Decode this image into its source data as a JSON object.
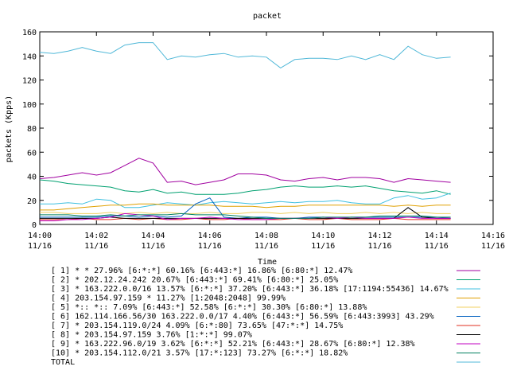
{
  "chart_data": {
    "type": "line",
    "title": "packet",
    "xlabel": "Time",
    "ylabel": "packets (Kpps)",
    "ylim": [
      0,
      160
    ],
    "xlim": [
      0,
      16
    ],
    "y_ticks": [
      "0",
      "20",
      "40",
      "60",
      "80",
      "100",
      "120",
      "140",
      "160"
    ],
    "x_ticks": [
      {
        "time": "14:00",
        "date": "11/16"
      },
      {
        "time": "14:02",
        "date": "11/16"
      },
      {
        "time": "14:04",
        "date": "11/16"
      },
      {
        "time": "14:06",
        "date": "11/16"
      },
      {
        "time": "14:08",
        "date": "11/16"
      },
      {
        "time": "14:10",
        "date": "11/16"
      },
      {
        "time": "14:12",
        "date": "11/16"
      },
      {
        "time": "14:14",
        "date": "11/16"
      },
      {
        "time": "14:16",
        "date": "11/16"
      }
    ],
    "x": [
      0,
      0.5,
      1,
      1.5,
      2,
      2.5,
      3,
      3.5,
      4,
      4.5,
      5,
      5.5,
      6,
      6.5,
      7,
      7.5,
      8,
      8.5,
      9,
      9.5,
      10,
      10.5,
      11,
      11.5,
      12,
      12.5,
      13,
      13.5,
      14,
      14.5
    ],
    "series": [
      {
        "name": "[ 1] * * 27.96%  [6:*:*] 60.16% [6:443:*] 16.86% [6:80:*] 12.47%",
        "color": "#a000a0",
        "values": [
          38,
          39,
          41,
          43,
          41,
          43,
          49,
          55,
          51,
          35,
          36,
          33,
          35,
          37,
          42,
          42,
          41,
          37,
          36,
          38,
          39,
          37,
          39,
          39,
          38,
          35,
          38,
          37,
          36,
          35
        ]
      },
      {
        "name": "[ 2] * 202.12.24.242 20.67%  [6:443:*] 69.41% [6:80:*] 25.05%",
        "color": "#00a070",
        "values": [
          37,
          36,
          34,
          33,
          32,
          31,
          28,
          27,
          29,
          26,
          27,
          25,
          25,
          25,
          26,
          28,
          29,
          31,
          32,
          31,
          31,
          32,
          31,
          32,
          30,
          28,
          27,
          26,
          28,
          25
        ]
      },
      {
        "name": "[ 3] * 163.222.0.0/16 13.57%  [6:*:*] 37.20% [6:443:*] 36.18% [17:1194:55436] 14.67%",
        "color": "#40c0e0",
        "values": [
          17,
          17,
          18,
          17,
          21,
          20,
          14,
          14,
          16,
          18,
          17,
          16,
          18,
          19,
          18,
          17,
          18,
          19,
          18,
          19,
          19,
          20,
          18,
          17,
          17,
          22,
          24,
          21,
          22,
          26
        ]
      },
      {
        "name": "[ 4] 203.154.97.159 * 11.27%  [1:2048:2048] 99.99%",
        "color": "#e0a000",
        "values": [
          12,
          12,
          13,
          14,
          15,
          16,
          16,
          17,
          17,
          16,
          16,
          16,
          16,
          15,
          15,
          15,
          14,
          15,
          15,
          16,
          16,
          16,
          16,
          16,
          16,
          15,
          16,
          15,
          16,
          16
        ]
      },
      {
        "name": "[ 5] *:: *:: 7.09%  [6:443:*] 52.58% [6:*:*] 30.30% [6:80:*] 13.88%",
        "color": "#f0d060",
        "values": [
          10,
          10,
          9,
          9,
          9,
          10,
          9,
          10,
          9,
          10,
          9,
          9,
          10,
          9,
          9,
          10,
          10,
          9,
          10,
          9,
          10,
          9,
          9,
          10,
          9,
          10,
          9,
          10,
          9,
          9
        ]
      },
      {
        "name": "[ 6] 162.114.166.56/30 163.222.0.0/17 4.40%  [6:443:*] 56.59% [6:443:3993] 43.29%",
        "color": "#0060c0",
        "values": [
          6,
          6,
          6,
          6,
          6,
          7,
          7,
          6,
          7,
          6,
          7,
          17,
          22,
          6,
          5,
          6,
          6,
          5,
          5,
          6,
          6,
          5,
          6,
          6,
          6,
          6,
          6,
          6,
          6,
          5
        ]
      },
      {
        "name": "[ 7] * 203.154.119.0/24 4.09%  [6:*:80] 73.65% [47:*:*] 14.75%",
        "color": "#e03020",
        "values": [
          4,
          4,
          4,
          5,
          4,
          4,
          5,
          4,
          5,
          4,
          4,
          5,
          4,
          4,
          5,
          4,
          4,
          4,
          5,
          4,
          4,
          5,
          4,
          4,
          4,
          5,
          4,
          4,
          4,
          4
        ]
      },
      {
        "name": "[ 8] * 203.154.97.159 3.76%  [1:*:*] 99.07%",
        "color": "#000000",
        "values": [
          5,
          5,
          5,
          5,
          5,
          6,
          5,
          5,
          5,
          5,
          5,
          5,
          5,
          5,
          5,
          5,
          5,
          5,
          5,
          5,
          5,
          5,
          5,
          5,
          5,
          5,
          14,
          6,
          5,
          5
        ]
      },
      {
        "name": "[ 9] * 163.222.96.0/19 3.62%  [6:*:*] 52.21% [6:443:*] 28.67% [6:80:*] 12.38%",
        "color": "#c000c0",
        "values": [
          3,
          3,
          4,
          4,
          5,
          6,
          9,
          8,
          7,
          4,
          5,
          5,
          6,
          5,
          4,
          4,
          4,
          5,
          5,
          5,
          6,
          5,
          6,
          5,
          5,
          5,
          6,
          5,
          5,
          5
        ]
      },
      {
        "name": "[10] * 203.154.112.0/21 3.57%  [17:*:123] 73.27% [6:*:*] 18.82%",
        "color": "#008060",
        "values": [
          8,
          8,
          8,
          7,
          7,
          8,
          7,
          8,
          8,
          8,
          9,
          8,
          8,
          8,
          7,
          6,
          5,
          5,
          5,
          5,
          6,
          6,
          6,
          6,
          7,
          7,
          7,
          7,
          6,
          6
        ]
      },
      {
        "name": "TOTAL",
        "color": "#50b8d8",
        "values": [
          143,
          142,
          144,
          147,
          144,
          142,
          149,
          151,
          151,
          137,
          140,
          139,
          141,
          142,
          139,
          140,
          139,
          130,
          137,
          138,
          138,
          137,
          140,
          137,
          141,
          137,
          148,
          141,
          138,
          139
        ]
      }
    ]
  }
}
